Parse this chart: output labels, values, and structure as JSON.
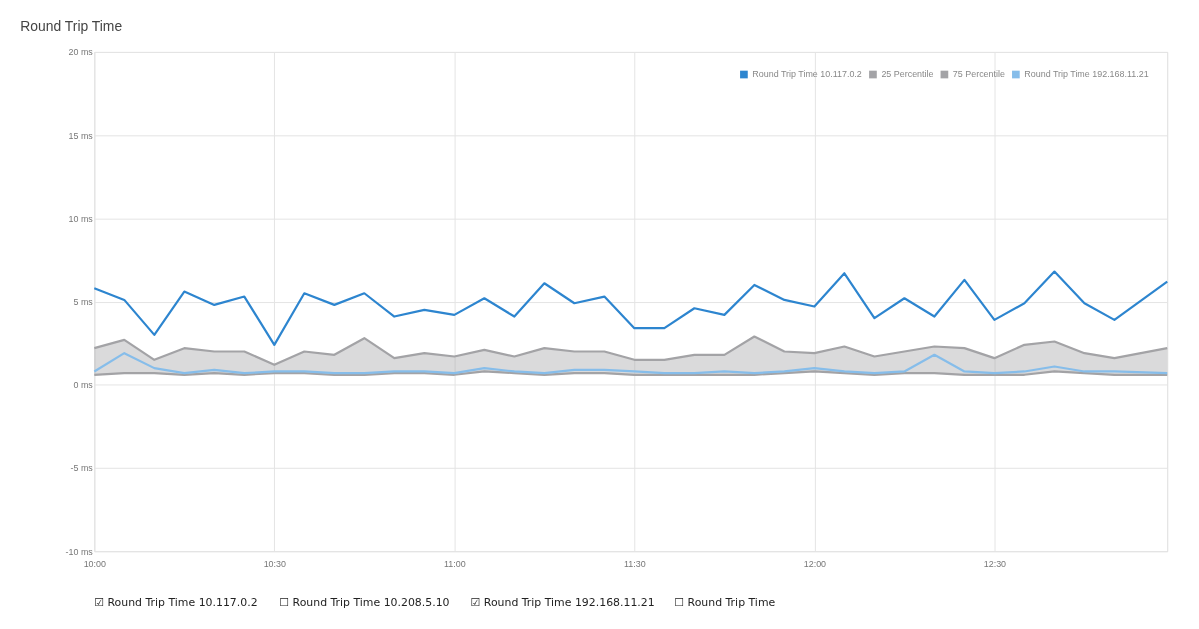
{
  "chart_data": {
    "type": "line",
    "title": "Round Trip Time",
    "x": [
      10.0,
      10.0833,
      10.1667,
      10.25,
      10.3333,
      10.4167,
      10.5,
      10.5833,
      10.6667,
      10.75,
      10.8333,
      10.9167,
      11.0,
      11.0833,
      11.1667,
      11.25,
      11.3333,
      11.4167,
      11.5,
      11.5833,
      11.6667,
      11.75,
      11.8333,
      11.9167,
      12.0,
      12.0833,
      12.1667,
      12.25,
      12.3333,
      12.4167,
      12.5,
      12.5833,
      12.6667,
      12.75,
      12.8333,
      12.98
    ],
    "series": [
      {
        "name": "Round Trip Time 10.117.0.2",
        "color": "#2d85cf",
        "values": [
          5.8,
          5.1,
          3.0,
          5.6,
          4.8,
          5.3,
          2.4,
          5.5,
          4.8,
          5.5,
          4.1,
          4.5,
          4.2,
          5.2,
          4.1,
          6.1,
          4.9,
          5.3,
          3.4,
          3.4,
          4.6,
          4.2,
          6.0,
          5.1,
          4.7,
          6.7,
          4.0,
          5.2,
          4.1,
          6.3,
          3.9,
          4.9,
          6.8,
          4.9,
          3.9,
          6.2
        ]
      },
      {
        "name": "25 Percentile",
        "color": "#a3a3a6",
        "values": [
          0.6,
          0.7,
          0.7,
          0.6,
          0.7,
          0.6,
          0.7,
          0.7,
          0.6,
          0.6,
          0.7,
          0.7,
          0.6,
          0.8,
          0.7,
          0.6,
          0.7,
          0.7,
          0.6,
          0.6,
          0.6,
          0.6,
          0.6,
          0.7,
          0.8,
          0.7,
          0.6,
          0.7,
          0.7,
          0.6,
          0.6,
          0.6,
          0.8,
          0.7,
          0.6,
          0.6
        ]
      },
      {
        "name": "75 Percentile",
        "type": "area",
        "color": "#a3a3a6",
        "values": [
          2.2,
          2.7,
          1.5,
          2.2,
          2.0,
          2.0,
          1.2,
          2.0,
          1.8,
          2.8,
          1.6,
          1.9,
          1.7,
          2.1,
          1.7,
          2.2,
          2.0,
          2.0,
          1.5,
          1.5,
          1.8,
          1.8,
          2.9,
          2.0,
          1.9,
          2.3,
          1.7,
          2.0,
          2.3,
          2.2,
          1.6,
          2.4,
          2.6,
          1.9,
          1.6,
          2.2
        ]
      },
      {
        "name": "Round Trip Time 192.168.11.21",
        "color": "#86bdea",
        "values": [
          0.8,
          1.9,
          1.0,
          0.7,
          0.9,
          0.7,
          0.8,
          0.8,
          0.7,
          0.7,
          0.8,
          0.8,
          0.7,
          1.0,
          0.8,
          0.7,
          0.9,
          0.9,
          0.8,
          0.7,
          0.7,
          0.8,
          0.7,
          0.8,
          1.0,
          0.8,
          0.7,
          0.8,
          1.8,
          0.8,
          0.7,
          0.8,
          1.1,
          0.8,
          0.8,
          0.7
        ]
      }
    ],
    "xlim": [
      10.0,
      12.98
    ],
    "xticks": [
      {
        "value": 10.0,
        "label": "10:00"
      },
      {
        "value": 10.5,
        "label": "10:30"
      },
      {
        "value": 11.0,
        "label": "11:00"
      },
      {
        "value": 11.5,
        "label": "11:30"
      },
      {
        "value": 12.0,
        "label": "12:00"
      },
      {
        "value": 12.5,
        "label": "12:30"
      }
    ],
    "ylim": [
      -10,
      20
    ],
    "yticks": [
      {
        "value": -10,
        "label": "-10 ms"
      },
      {
        "value": -5,
        "label": "-5 ms"
      },
      {
        "value": 0,
        "label": "0 ms"
      },
      {
        "value": 5,
        "label": "5 ms"
      },
      {
        "value": 10,
        "label": "10 ms"
      },
      {
        "value": 15,
        "label": "15 ms"
      },
      {
        "value": 20,
        "label": "20 ms"
      }
    ],
    "grid": true,
    "legend": "top right",
    "marker": "none",
    "line_style": "solid",
    "annotations": [
      "☑ Round Trip Time 10.117.0.2",
      "☐ Round Trip Time 10.208.5.10",
      "☑ Round Trip Time 192.168.11.21",
      "☐ Round Trip Time"
    ]
  }
}
